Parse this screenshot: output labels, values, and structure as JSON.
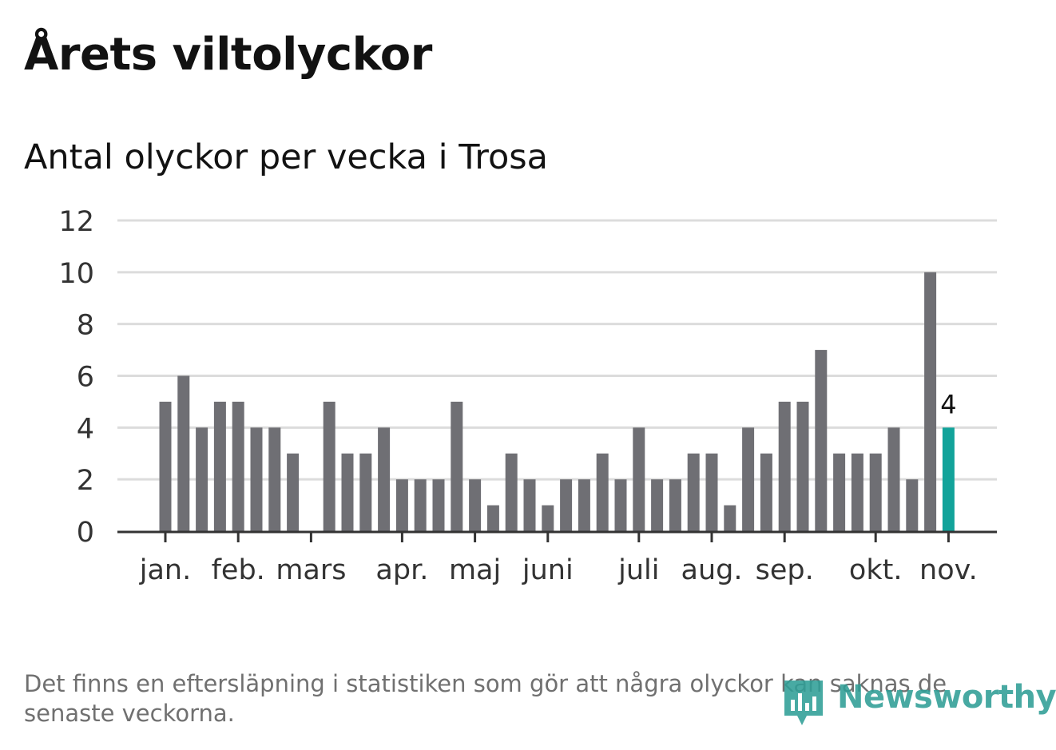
{
  "title": "Årets viltolyckor",
  "subtitle": "Antal olyckor per vecka i Trosa",
  "footnote": "Det finns en eftersläpning i statistiken som gör att några olyckor kan saknas de senaste veckorna.",
  "logo": {
    "text": "Newsworthy",
    "icon": "bar-chart-speech-bubble-icon"
  },
  "chart_data": {
    "type": "bar",
    "xlabel": "",
    "ylabel": "",
    "ylim": [
      0,
      12
    ],
    "yticks": [
      "0",
      "2",
      "4",
      "6",
      "8",
      "10",
      "12"
    ],
    "grid": true,
    "month_labels": [
      {
        "label": "jan.",
        "week": 1
      },
      {
        "label": "feb.",
        "week": 5
      },
      {
        "label": "mars",
        "week": 9
      },
      {
        "label": "apr.",
        "week": 14
      },
      {
        "label": "maj",
        "week": 18
      },
      {
        "label": "juni",
        "week": 22
      },
      {
        "label": "juli",
        "week": 27
      },
      {
        "label": "aug.",
        "week": 31
      },
      {
        "label": "sep.",
        "week": 35
      },
      {
        "label": "okt.",
        "week": 40
      },
      {
        "label": "nov.",
        "week": 44
      }
    ],
    "weeks": [
      1,
      2,
      3,
      4,
      5,
      6,
      7,
      8,
      9,
      10,
      11,
      12,
      13,
      14,
      15,
      16,
      17,
      18,
      19,
      20,
      21,
      22,
      23,
      24,
      25,
      26,
      27,
      28,
      29,
      30,
      31,
      32,
      33,
      34,
      35,
      36,
      37,
      38,
      39,
      40,
      41,
      42,
      43,
      44
    ],
    "values": [
      5,
      6,
      4,
      5,
      5,
      4,
      4,
      3,
      0,
      5,
      3,
      3,
      4,
      2,
      2,
      2,
      5,
      2,
      1,
      3,
      2,
      1,
      2,
      2,
      3,
      2,
      4,
      2,
      2,
      3,
      3,
      1,
      4,
      3,
      5,
      5,
      7,
      3,
      3,
      3,
      4,
      2,
      10,
      4
    ],
    "highlight_index": 43,
    "highlight_label": "4",
    "colors": {
      "bar": "#6f6f74",
      "highlight": "#12a39a",
      "grid": "#dcdcdc",
      "axis": "#333333",
      "tick_text": "#333333"
    }
  }
}
